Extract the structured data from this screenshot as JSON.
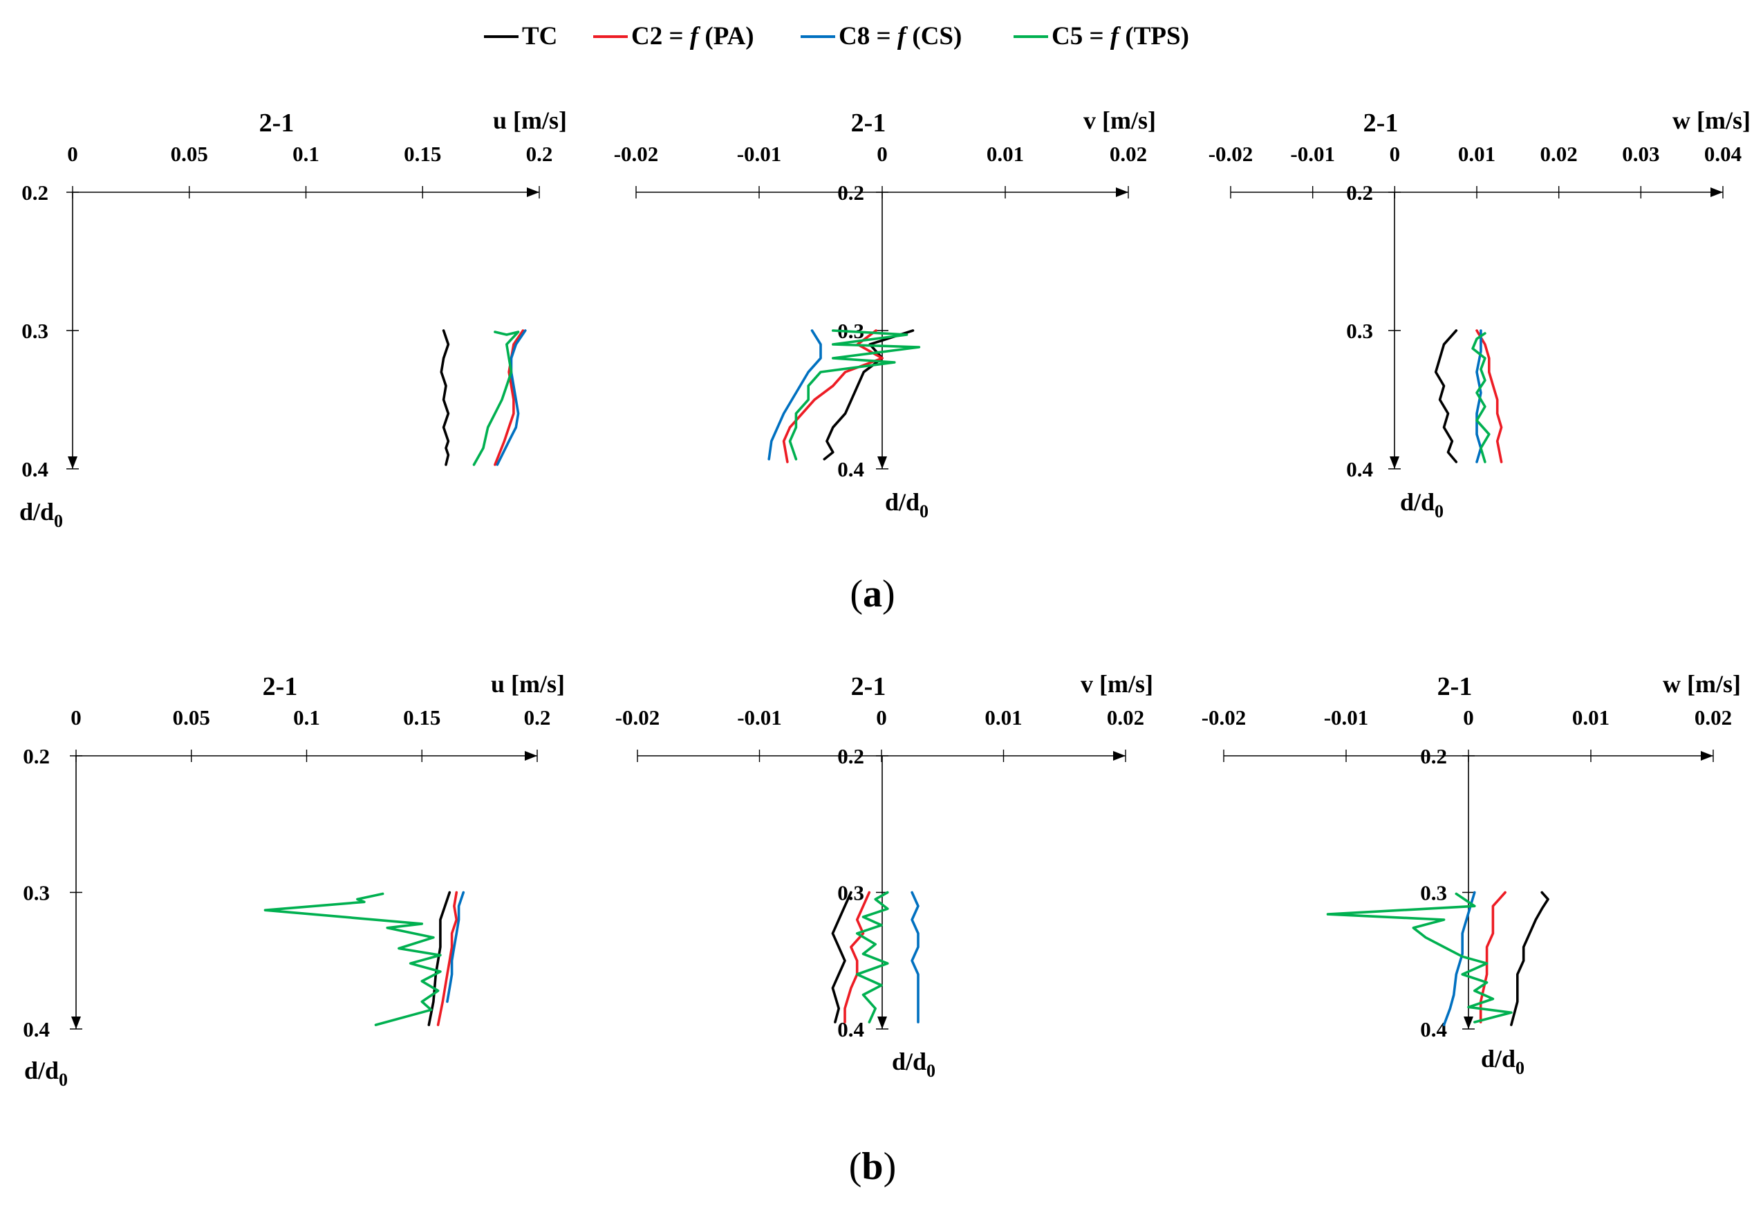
{
  "legend": {
    "items": [
      {
        "label": "TC",
        "color": "#000000"
      },
      {
        "label": "C2 = ",
        "fn": "f",
        "arg": " (PA)",
        "color": "#ed1c24"
      },
      {
        "label": "C8 = ",
        "fn": "f",
        "arg": " (CS)",
        "color": "#0070c0"
      },
      {
        "label": "C5 = ",
        "fn": "f",
        "arg": " (TPS)",
        "color": "#00b050"
      }
    ]
  },
  "panel_labels": {
    "a": {
      "open": "(",
      "letter": "a",
      "close": ")"
    },
    "b": {
      "open": "(",
      "letter": "b",
      "close": ")"
    }
  },
  "y_axis_label": {
    "main": "d/d",
    "sub": "0"
  },
  "chart_data": [
    {
      "id": "a-u",
      "type": "line",
      "title": "2-1",
      "xlabel": "u [m/s]",
      "xlim": [
        0,
        0.2
      ],
      "xticks": [
        0,
        0.05,
        0.1,
        0.15,
        0.2
      ],
      "xtick_labels": [
        "0",
        "0.05",
        "0.1",
        "0.15",
        "0.2"
      ],
      "ylim": [
        0.2,
        0.4
      ],
      "yticks": [
        0.2,
        0.3,
        0.4
      ],
      "ytick_labels": [
        "0.2",
        "0.3",
        "0.4"
      ],
      "series": [
        {
          "name": "TC",
          "color": "#000000",
          "x": [
            0.159,
            0.161,
            0.159,
            0.158,
            0.16,
            0.159,
            0.161,
            0.159,
            0.161,
            0.16,
            0.161,
            0.16
          ],
          "y": [
            0.3,
            0.31,
            0.32,
            0.33,
            0.34,
            0.35,
            0.36,
            0.37,
            0.38,
            0.385,
            0.39,
            0.397
          ]
        },
        {
          "name": "C2",
          "color": "#ed1c24",
          "x": [
            0.193,
            0.189,
            0.188,
            0.187,
            0.188,
            0.189,
            0.189,
            0.187,
            0.185,
            0.181
          ],
          "y": [
            0.3,
            0.31,
            0.32,
            0.33,
            0.34,
            0.35,
            0.36,
            0.37,
            0.38,
            0.397
          ]
        },
        {
          "name": "C8",
          "color": "#0070c0",
          "x": [
            0.194,
            0.19,
            0.188,
            0.188,
            0.189,
            0.19,
            0.191,
            0.19,
            0.187,
            0.182
          ],
          "y": [
            0.3,
            0.31,
            0.32,
            0.33,
            0.34,
            0.35,
            0.36,
            0.37,
            0.38,
            0.397
          ]
        },
        {
          "name": "C5",
          "color": "#00b050",
          "x": [
            0.181,
            0.186,
            0.191,
            0.186,
            0.187,
            0.188,
            0.186,
            0.184,
            0.181,
            0.178,
            0.176,
            0.172
          ],
          "y": [
            0.301,
            0.303,
            0.301,
            0.31,
            0.32,
            0.33,
            0.34,
            0.35,
            0.36,
            0.37,
            0.385,
            0.397
          ]
        }
      ]
    },
    {
      "id": "a-v",
      "type": "line",
      "title": "2-1",
      "xlabel": "v [m/s]",
      "xlim": [
        -0.02,
        0.02
      ],
      "xticks": [
        -0.02,
        -0.01,
        0,
        0.01,
        0.02
      ],
      "xtick_labels": [
        "-0.02",
        "-0.01",
        "0",
        "0.01",
        "0.02"
      ],
      "ylim": [
        0.2,
        0.4
      ],
      "yticks": [
        0.2,
        0.3,
        0.4
      ],
      "ytick_labels": [
        "0.2",
        "0.3",
        "0.4"
      ],
      "series": [
        {
          "name": "TC",
          "color": "#000000",
          "x": [
            0.0025,
            -0.001,
            0.0,
            -0.0015,
            -0.002,
            -0.0025,
            -0.003,
            -0.004,
            -0.0045,
            -0.004,
            -0.0047
          ],
          "y": [
            0.3,
            0.31,
            0.32,
            0.33,
            0.34,
            0.35,
            0.36,
            0.37,
            0.38,
            0.388,
            0.393
          ]
        },
        {
          "name": "C2",
          "color": "#ed1c24",
          "x": [
            -0.0005,
            -0.002,
            0.0,
            -0.003,
            -0.004,
            -0.0055,
            -0.0065,
            -0.0075,
            -0.008,
            -0.0077
          ],
          "y": [
            0.3,
            0.31,
            0.32,
            0.33,
            0.34,
            0.35,
            0.36,
            0.37,
            0.38,
            0.395
          ]
        },
        {
          "name": "C8",
          "color": "#0070c0",
          "x": [
            -0.0057,
            -0.005,
            -0.005,
            -0.006,
            -0.007,
            -0.008,
            -0.009,
            -0.0092
          ],
          "y": [
            0.3,
            0.31,
            0.32,
            0.33,
            0.345,
            0.36,
            0.38,
            0.393
          ]
        },
        {
          "name": "C5",
          "color": "#00b050",
          "x": [
            -0.004,
            0.002,
            -0.004,
            0.003,
            -0.004,
            0.001,
            -0.005,
            -0.006,
            -0.006,
            -0.007,
            -0.007,
            -0.0075,
            -0.007
          ],
          "y": [
            0.3,
            0.303,
            0.31,
            0.312,
            0.32,
            0.323,
            0.33,
            0.34,
            0.35,
            0.36,
            0.37,
            0.38,
            0.393
          ]
        }
      ]
    },
    {
      "id": "a-w",
      "type": "line",
      "title": "2-1",
      "xlabel": "w [m/s]",
      "xlim": [
        -0.02,
        0.04
      ],
      "xticks": [
        -0.02,
        -0.01,
        0,
        0.01,
        0.02,
        0.03,
        0.04
      ],
      "xtick_labels": [
        "-0.02",
        "-0.01",
        "0",
        "0.01",
        "0.02",
        "0.03",
        "0.04"
      ],
      "ylim": [
        0.2,
        0.4
      ],
      "yticks": [
        0.2,
        0.3,
        0.4
      ],
      "ytick_labels": [
        "0.2",
        "0.3",
        "0.4"
      ],
      "series": [
        {
          "name": "TC",
          "color": "#000000",
          "x": [
            0.0075,
            0.006,
            0.0055,
            0.005,
            0.006,
            0.0055,
            0.0065,
            0.006,
            0.007,
            0.0065,
            0.0075
          ],
          "y": [
            0.3,
            0.31,
            0.32,
            0.33,
            0.34,
            0.35,
            0.36,
            0.37,
            0.38,
            0.388,
            0.395
          ]
        },
        {
          "name": "C2",
          "color": "#ed1c24",
          "x": [
            0.01,
            0.011,
            0.0115,
            0.0115,
            0.012,
            0.0125,
            0.0125,
            0.013,
            0.0125,
            0.013
          ],
          "y": [
            0.3,
            0.31,
            0.32,
            0.33,
            0.34,
            0.35,
            0.36,
            0.37,
            0.38,
            0.395
          ]
        },
        {
          "name": "C8",
          "color": "#0070c0",
          "x": [
            0.0105,
            0.0105,
            0.01,
            0.0105,
            0.01,
            0.01,
            0.0105,
            0.01
          ],
          "y": [
            0.3,
            0.315,
            0.33,
            0.345,
            0.36,
            0.375,
            0.385,
            0.395
          ]
        },
        {
          "name": "C5",
          "color": "#00b050",
          "x": [
            0.011,
            0.01,
            0.0095,
            0.011,
            0.0105,
            0.011,
            0.01,
            0.011,
            0.01,
            0.0115,
            0.0105,
            0.011
          ],
          "y": [
            0.302,
            0.306,
            0.313,
            0.32,
            0.328,
            0.336,
            0.345,
            0.355,
            0.365,
            0.375,
            0.385,
            0.395
          ]
        }
      ]
    },
    {
      "id": "b-u",
      "type": "line",
      "title": "2-1",
      "xlabel": "u [m/s]",
      "xlim": [
        0,
        0.2
      ],
      "xticks": [
        0,
        0.05,
        0.1,
        0.15,
        0.2
      ],
      "xtick_labels": [
        "0",
        "0.05",
        "0.1",
        "0.15",
        "0.2"
      ],
      "ylim": [
        0.2,
        0.4
      ],
      "yticks": [
        0.2,
        0.3,
        0.4
      ],
      "ytick_labels": [
        "0.2",
        "0.3",
        "0.4"
      ],
      "series": [
        {
          "name": "TC",
          "color": "#000000",
          "x": [
            0.162,
            0.16,
            0.158,
            0.158,
            0.158,
            0.157,
            0.156,
            0.155,
            0.153
          ],
          "y": [
            0.3,
            0.31,
            0.32,
            0.33,
            0.34,
            0.35,
            0.36,
            0.38,
            0.397
          ]
        },
        {
          "name": "C2",
          "color": "#ed1c24",
          "x": [
            0.165,
            0.164,
            0.165,
            0.163,
            0.163,
            0.162,
            0.161,
            0.159,
            0.157
          ],
          "y": [
            0.3,
            0.31,
            0.32,
            0.33,
            0.34,
            0.35,
            0.36,
            0.38,
            0.397
          ]
        },
        {
          "name": "C8",
          "color": "#0070c0",
          "x": [
            0.168,
            0.166,
            0.166,
            0.165,
            0.164,
            0.163,
            0.163,
            0.162,
            0.161
          ],
          "y": [
            0.3,
            0.31,
            0.32,
            0.33,
            0.34,
            0.35,
            0.36,
            0.37,
            0.38
          ]
        },
        {
          "name": "C5",
          "color": "#00b050",
          "x": [
            0.133,
            0.122,
            0.125,
            0.082,
            0.15,
            0.135,
            0.155,
            0.14,
            0.158,
            0.145,
            0.158,
            0.15,
            0.157,
            0.15,
            0.154,
            0.13
          ],
          "y": [
            0.301,
            0.305,
            0.307,
            0.313,
            0.323,
            0.326,
            0.333,
            0.341,
            0.346,
            0.352,
            0.358,
            0.365,
            0.372,
            0.38,
            0.386,
            0.397
          ]
        }
      ]
    },
    {
      "id": "b-v",
      "type": "line",
      "title": "2-1",
      "xlabel": "v [m/s]",
      "xlim": [
        -0.02,
        0.02
      ],
      "xticks": [
        -0.02,
        -0.01,
        0,
        0.01,
        0.02
      ],
      "xtick_labels": [
        "-0.02",
        "-0.01",
        "0",
        "0.01",
        "0.02"
      ],
      "ylim": [
        0.2,
        0.4
      ],
      "yticks": [
        0.2,
        0.3,
        0.4
      ],
      "ytick_labels": [
        "0.2",
        "0.3",
        "0.4"
      ],
      "series": [
        {
          "name": "TC",
          "color": "#000000",
          "x": [
            -0.0025,
            -0.003,
            -0.0035,
            -0.004,
            -0.0035,
            -0.003,
            -0.0035,
            -0.004,
            -0.0035,
            -0.0038
          ],
          "y": [
            0.3,
            0.31,
            0.32,
            0.33,
            0.34,
            0.35,
            0.36,
            0.37,
            0.385,
            0.395
          ]
        },
        {
          "name": "C2",
          "color": "#ed1c24",
          "x": [
            -0.001,
            -0.0015,
            -0.002,
            -0.0015,
            -0.0025,
            -0.002,
            -0.002,
            -0.0025,
            -0.003,
            -0.003
          ],
          "y": [
            0.3,
            0.31,
            0.32,
            0.33,
            0.34,
            0.35,
            0.36,
            0.37,
            0.385,
            0.395
          ]
        },
        {
          "name": "C8",
          "color": "#0070c0",
          "x": [
            0.0025,
            0.003,
            0.0025,
            0.003,
            0.003,
            0.0025,
            0.003,
            0.003,
            0.003
          ],
          "y": [
            0.3,
            0.31,
            0.32,
            0.33,
            0.34,
            0.35,
            0.36,
            0.375,
            0.395
          ]
        },
        {
          "name": "C5",
          "color": "#00b050",
          "x": [
            0.0005,
            -0.0005,
            0.0005,
            -0.0015,
            0.0,
            -0.002,
            -0.0005,
            -0.0015,
            0.0005,
            -0.002,
            0.0,
            -0.0015,
            -0.0005,
            -0.001
          ],
          "y": [
            0.3,
            0.305,
            0.312,
            0.318,
            0.324,
            0.33,
            0.338,
            0.345,
            0.352,
            0.36,
            0.368,
            0.375,
            0.385,
            0.395
          ]
        }
      ]
    },
    {
      "id": "b-w",
      "type": "line",
      "title": "2-1",
      "xlabel": "w [m/s]",
      "xlim": [
        -0.02,
        0.02
      ],
      "xticks": [
        -0.02,
        -0.01,
        0,
        0.01,
        0.02
      ],
      "xtick_labels": [
        "-0.02",
        "-0.01",
        "0",
        "0.01",
        "0.02"
      ],
      "ylim": [
        0.2,
        0.4
      ],
      "yticks": [
        0.2,
        0.3,
        0.4
      ],
      "ytick_labels": [
        "0.2",
        "0.3",
        "0.4"
      ],
      "series": [
        {
          "name": "TC",
          "color": "#000000",
          "x": [
            0.006,
            0.0065,
            0.006,
            0.0055,
            0.005,
            0.0045,
            0.0045,
            0.004,
            0.004,
            0.0035
          ],
          "y": [
            0.3,
            0.305,
            0.312,
            0.32,
            0.33,
            0.34,
            0.35,
            0.36,
            0.38,
            0.397
          ]
        },
        {
          "name": "C2",
          "color": "#ed1c24",
          "x": [
            0.003,
            0.0025,
            0.002,
            0.002,
            0.002,
            0.0015,
            0.0015,
            0.0015,
            0.001,
            0.001
          ],
          "y": [
            0.3,
            0.305,
            0.31,
            0.32,
            0.33,
            0.34,
            0.35,
            0.36,
            0.38,
            0.395
          ]
        },
        {
          "name": "C8",
          "color": "#0070c0",
          "x": [
            0.0005,
            0.0,
            -0.0005,
            -0.0005,
            -0.001,
            -0.0012,
            -0.0015,
            -0.002
          ],
          "y": [
            0.3,
            0.315,
            0.33,
            0.345,
            0.36,
            0.375,
            0.385,
            0.397
          ]
        },
        {
          "name": "C5",
          "color": "#00b050",
          "x": [
            -0.001,
            0.0005,
            -0.0115,
            -0.002,
            -0.0045,
            -0.0035,
            -0.002,
            -0.0005,
            0.0015,
            -0.0005,
            0.0015,
            0.0005,
            0.002,
            0.0,
            0.0035,
            0.0005
          ],
          "y": [
            0.301,
            0.31,
            0.316,
            0.32,
            0.326,
            0.333,
            0.34,
            0.347,
            0.352,
            0.36,
            0.366,
            0.372,
            0.378,
            0.384,
            0.388,
            0.395
          ]
        }
      ]
    }
  ]
}
